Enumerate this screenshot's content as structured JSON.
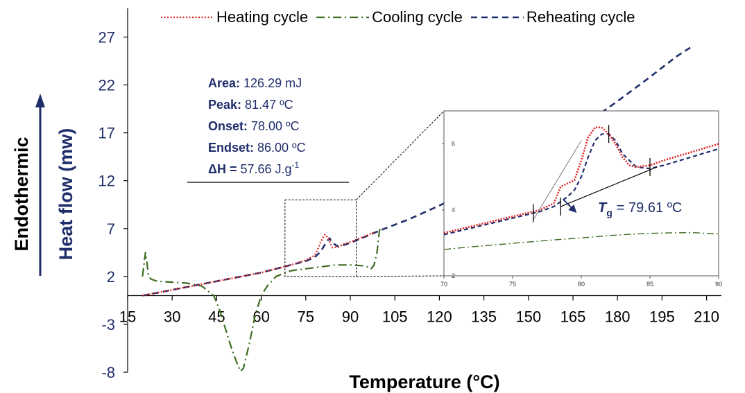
{
  "chart_data": {
    "type": "line",
    "xlabel": "Temperature (°C)",
    "ylabel": "Heat flow (mw)",
    "ylabel_outer": "Endothermic",
    "xlim": [
      15,
      215
    ],
    "ylim": [
      -8,
      30
    ],
    "x_ticks": [
      "15",
      "30",
      "45",
      "60",
      "75",
      "90",
      "105",
      "120",
      "135",
      "150",
      "165",
      "180",
      "195",
      "210"
    ],
    "y_ticks": [
      "-8",
      "-3",
      "2",
      "7",
      "12",
      "17",
      "22",
      "27"
    ],
    "legend_position": "top",
    "series": [
      {
        "name": "Heating cycle",
        "color": "#e02020",
        "style": "dotted",
        "x": [
          20,
          25,
          30,
          35,
          40,
          45,
          50,
          55,
          60,
          65,
          70,
          75,
          78,
          79,
          80,
          81.47,
          82.5,
          84,
          86,
          88,
          90,
          95,
          98
        ],
        "y": [
          0.0,
          0.3,
          0.6,
          0.9,
          1.2,
          1.5,
          1.8,
          2.1,
          2.4,
          2.8,
          3.2,
          3.7,
          4.2,
          4.8,
          5.6,
          6.4,
          6.0,
          5.0,
          5.1,
          5.4,
          5.6,
          6.2,
          6.6
        ]
      },
      {
        "name": "Cooling cycle",
        "color": "#3d6b1f",
        "style": "dash-dot",
        "x": [
          20,
          20.5,
          21,
          21.5,
          22,
          23,
          25,
          30,
          35,
          40,
          44,
          46,
          48,
          50,
          52,
          53,
          54,
          56,
          58,
          60,
          62,
          65,
          70,
          75,
          80,
          85,
          90,
          95,
          97,
          98,
          99,
          99.5,
          100
        ],
        "y": [
          2.0,
          3.2,
          4.5,
          3.5,
          2.0,
          1.7,
          1.5,
          1.4,
          1.3,
          1.0,
          0.0,
          -1.5,
          -3.5,
          -5.5,
          -7.2,
          -7.9,
          -7.6,
          -5.0,
          -2.0,
          0.0,
          1.0,
          2.0,
          2.6,
          2.8,
          3.0,
          3.2,
          3.2,
          3.1,
          2.8,
          3.2,
          4.5,
          6.0,
          7.2
        ]
      },
      {
        "name": "Reheating cycle",
        "color": "#1f2d6b",
        "style": "dashed",
        "x": [
          20,
          30,
          40,
          50,
          60,
          70,
          75,
          78,
          80,
          82,
          83,
          84,
          86,
          90,
          100,
          110,
          120,
          130,
          140,
          150,
          160,
          170,
          180,
          190,
          200,
          205
        ],
        "y": [
          0.0,
          0.6,
          1.2,
          1.8,
          2.4,
          3.2,
          3.6,
          4.0,
          4.6,
          5.6,
          6.0,
          5.5,
          5.1,
          5.5,
          6.8,
          8.0,
          9.4,
          10.9,
          12.4,
          14.2,
          16.1,
          18.1,
          20.3,
          22.6,
          25.0,
          26.0
        ]
      }
    ],
    "inset": {
      "xlim": [
        70,
        90
      ],
      "ylim": [
        2,
        7
      ],
      "x_ticks": [
        "70",
        "75",
        "80",
        "85",
        "90"
      ],
      "y_ticks": [
        "2",
        "4",
        "6"
      ],
      "source_box": {
        "x": [
          68,
          92
        ],
        "y": [
          2,
          10
        ]
      },
      "heating": {
        "x": [
          70,
          72,
          74,
          76,
          77,
          78,
          78.5,
          79,
          79.5,
          80,
          80.5,
          81,
          81.47,
          82,
          82.5,
          83,
          83.5,
          84,
          85,
          86,
          88,
          90
        ],
        "y": [
          3.3,
          3.5,
          3.7,
          3.9,
          4.0,
          4.2,
          4.7,
          4.8,
          4.9,
          5.5,
          6.2,
          6.5,
          6.5,
          6.3,
          6.0,
          5.6,
          5.35,
          5.3,
          5.35,
          5.5,
          5.75,
          6.0
        ]
      },
      "cooling": {
        "x": [
          70,
          72,
          74,
          76,
          78,
          80,
          82,
          84,
          86,
          88,
          90
        ],
        "y": [
          2.8,
          2.88,
          2.95,
          3.02,
          3.09,
          3.15,
          3.22,
          3.27,
          3.3,
          3.31,
          3.27
        ]
      },
      "reheating": {
        "x": [
          70,
          72,
          74,
          76,
          77,
          78,
          79,
          79.5,
          80,
          80.5,
          81,
          81.5,
          82,
          82.5,
          83,
          84,
          85,
          86,
          88,
          90
        ],
        "y": [
          3.25,
          3.45,
          3.65,
          3.85,
          3.95,
          4.1,
          4.4,
          4.6,
          5.0,
          5.6,
          6.1,
          6.3,
          6.3,
          6.1,
          5.7,
          5.3,
          5.25,
          5.35,
          5.6,
          5.85
        ]
      },
      "tangent_a": {
        "x": [
          76.5,
          80
        ],
        "y": [
          3.7,
          6.1
        ]
      },
      "tangent_b": {
        "x": [
          78.5,
          85.5
        ],
        "y": [
          4.1,
          5.3
        ]
      },
      "markers": [
        {
          "x": 76.5,
          "y": 3.9
        },
        {
          "x": 78.5,
          "y": 4.1
        },
        {
          "x": 82,
          "y": 6.3
        },
        {
          "x": 85,
          "y": 5.3
        }
      ]
    },
    "annotations": {
      "stats": [
        {
          "label": "Area:",
          "value": "126.29 mJ"
        },
        {
          "label": "Peak:",
          "value": "81.47 ºC"
        },
        {
          "label": "Onset:",
          "value": "78.00 ºC"
        },
        {
          "label": "Endset:",
          "value": "86.00 ºC"
        }
      ],
      "dh_label": "ΔH = ",
      "dh_value": "57.66 J.g",
      "dh_sup": "-1",
      "tg_symbol": "T",
      "tg_sub": "g",
      "tg_value": "= 79.61 ºC"
    }
  }
}
